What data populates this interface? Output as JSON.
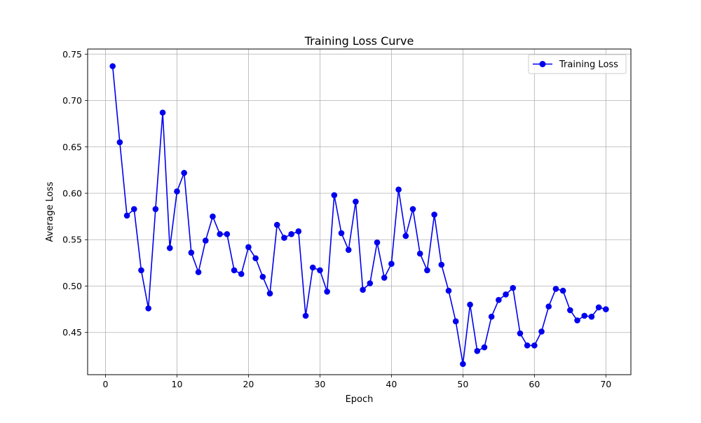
{
  "chart_data": {
    "type": "line",
    "title": "Training Loss Curve",
    "xlabel": "Epoch",
    "ylabel": "Average Loss",
    "xlim": [
      -2.5,
      73.5
    ],
    "ylim": [
      0.4045,
      0.7555
    ],
    "xticks": [
      0,
      10,
      20,
      30,
      40,
      50,
      60,
      70
    ],
    "xtick_labels": [
      "0",
      "10",
      "20",
      "30",
      "40",
      "50",
      "60",
      "70"
    ],
    "yticks": [
      0.45,
      0.5,
      0.55,
      0.6,
      0.65,
      0.7,
      0.75
    ],
    "ytick_labels": [
      "0.45",
      "0.50",
      "0.55",
      "0.60",
      "0.65",
      "0.70",
      "0.75"
    ],
    "grid": true,
    "legend_position": "top-right",
    "colors": {
      "series": "#0000ee",
      "grid": "#b0b0b0"
    },
    "series": [
      {
        "name": "Training Loss",
        "marker": "circle",
        "x": [
          1,
          2,
          3,
          4,
          5,
          6,
          7,
          8,
          9,
          10,
          11,
          12,
          13,
          14,
          15,
          16,
          17,
          18,
          19,
          20,
          21,
          22,
          23,
          24,
          25,
          26,
          27,
          28,
          29,
          30,
          31,
          32,
          33,
          34,
          35,
          36,
          37,
          38,
          39,
          40,
          41,
          42,
          43,
          44,
          45,
          46,
          47,
          48,
          49,
          50,
          51,
          52,
          53,
          54,
          55,
          56,
          57,
          58,
          59,
          60,
          61,
          62,
          63,
          64,
          65,
          66,
          67,
          68,
          69,
          70
        ],
        "values": [
          0.737,
          0.655,
          0.576,
          0.583,
          0.517,
          0.476,
          0.583,
          0.687,
          0.541,
          0.602,
          0.622,
          0.536,
          0.515,
          0.549,
          0.575,
          0.556,
          0.556,
          0.517,
          0.513,
          0.542,
          0.53,
          0.51,
          0.492,
          0.566,
          0.552,
          0.556,
          0.559,
          0.468,
          0.52,
          0.517,
          0.494,
          0.598,
          0.557,
          0.539,
          0.591,
          0.496,
          0.503,
          0.547,
          0.509,
          0.524,
          0.604,
          0.554,
          0.583,
          0.535,
          0.517,
          0.577,
          0.523,
          0.495,
          0.462,
          0.416,
          0.48,
          0.43,
          0.434,
          0.467,
          0.485,
          0.491,
          0.498,
          0.449,
          0.436,
          0.436,
          0.451,
          0.478,
          0.497,
          0.495,
          0.474,
          0.463,
          0.468,
          0.467,
          0.477,
          0.475
        ]
      }
    ]
  }
}
